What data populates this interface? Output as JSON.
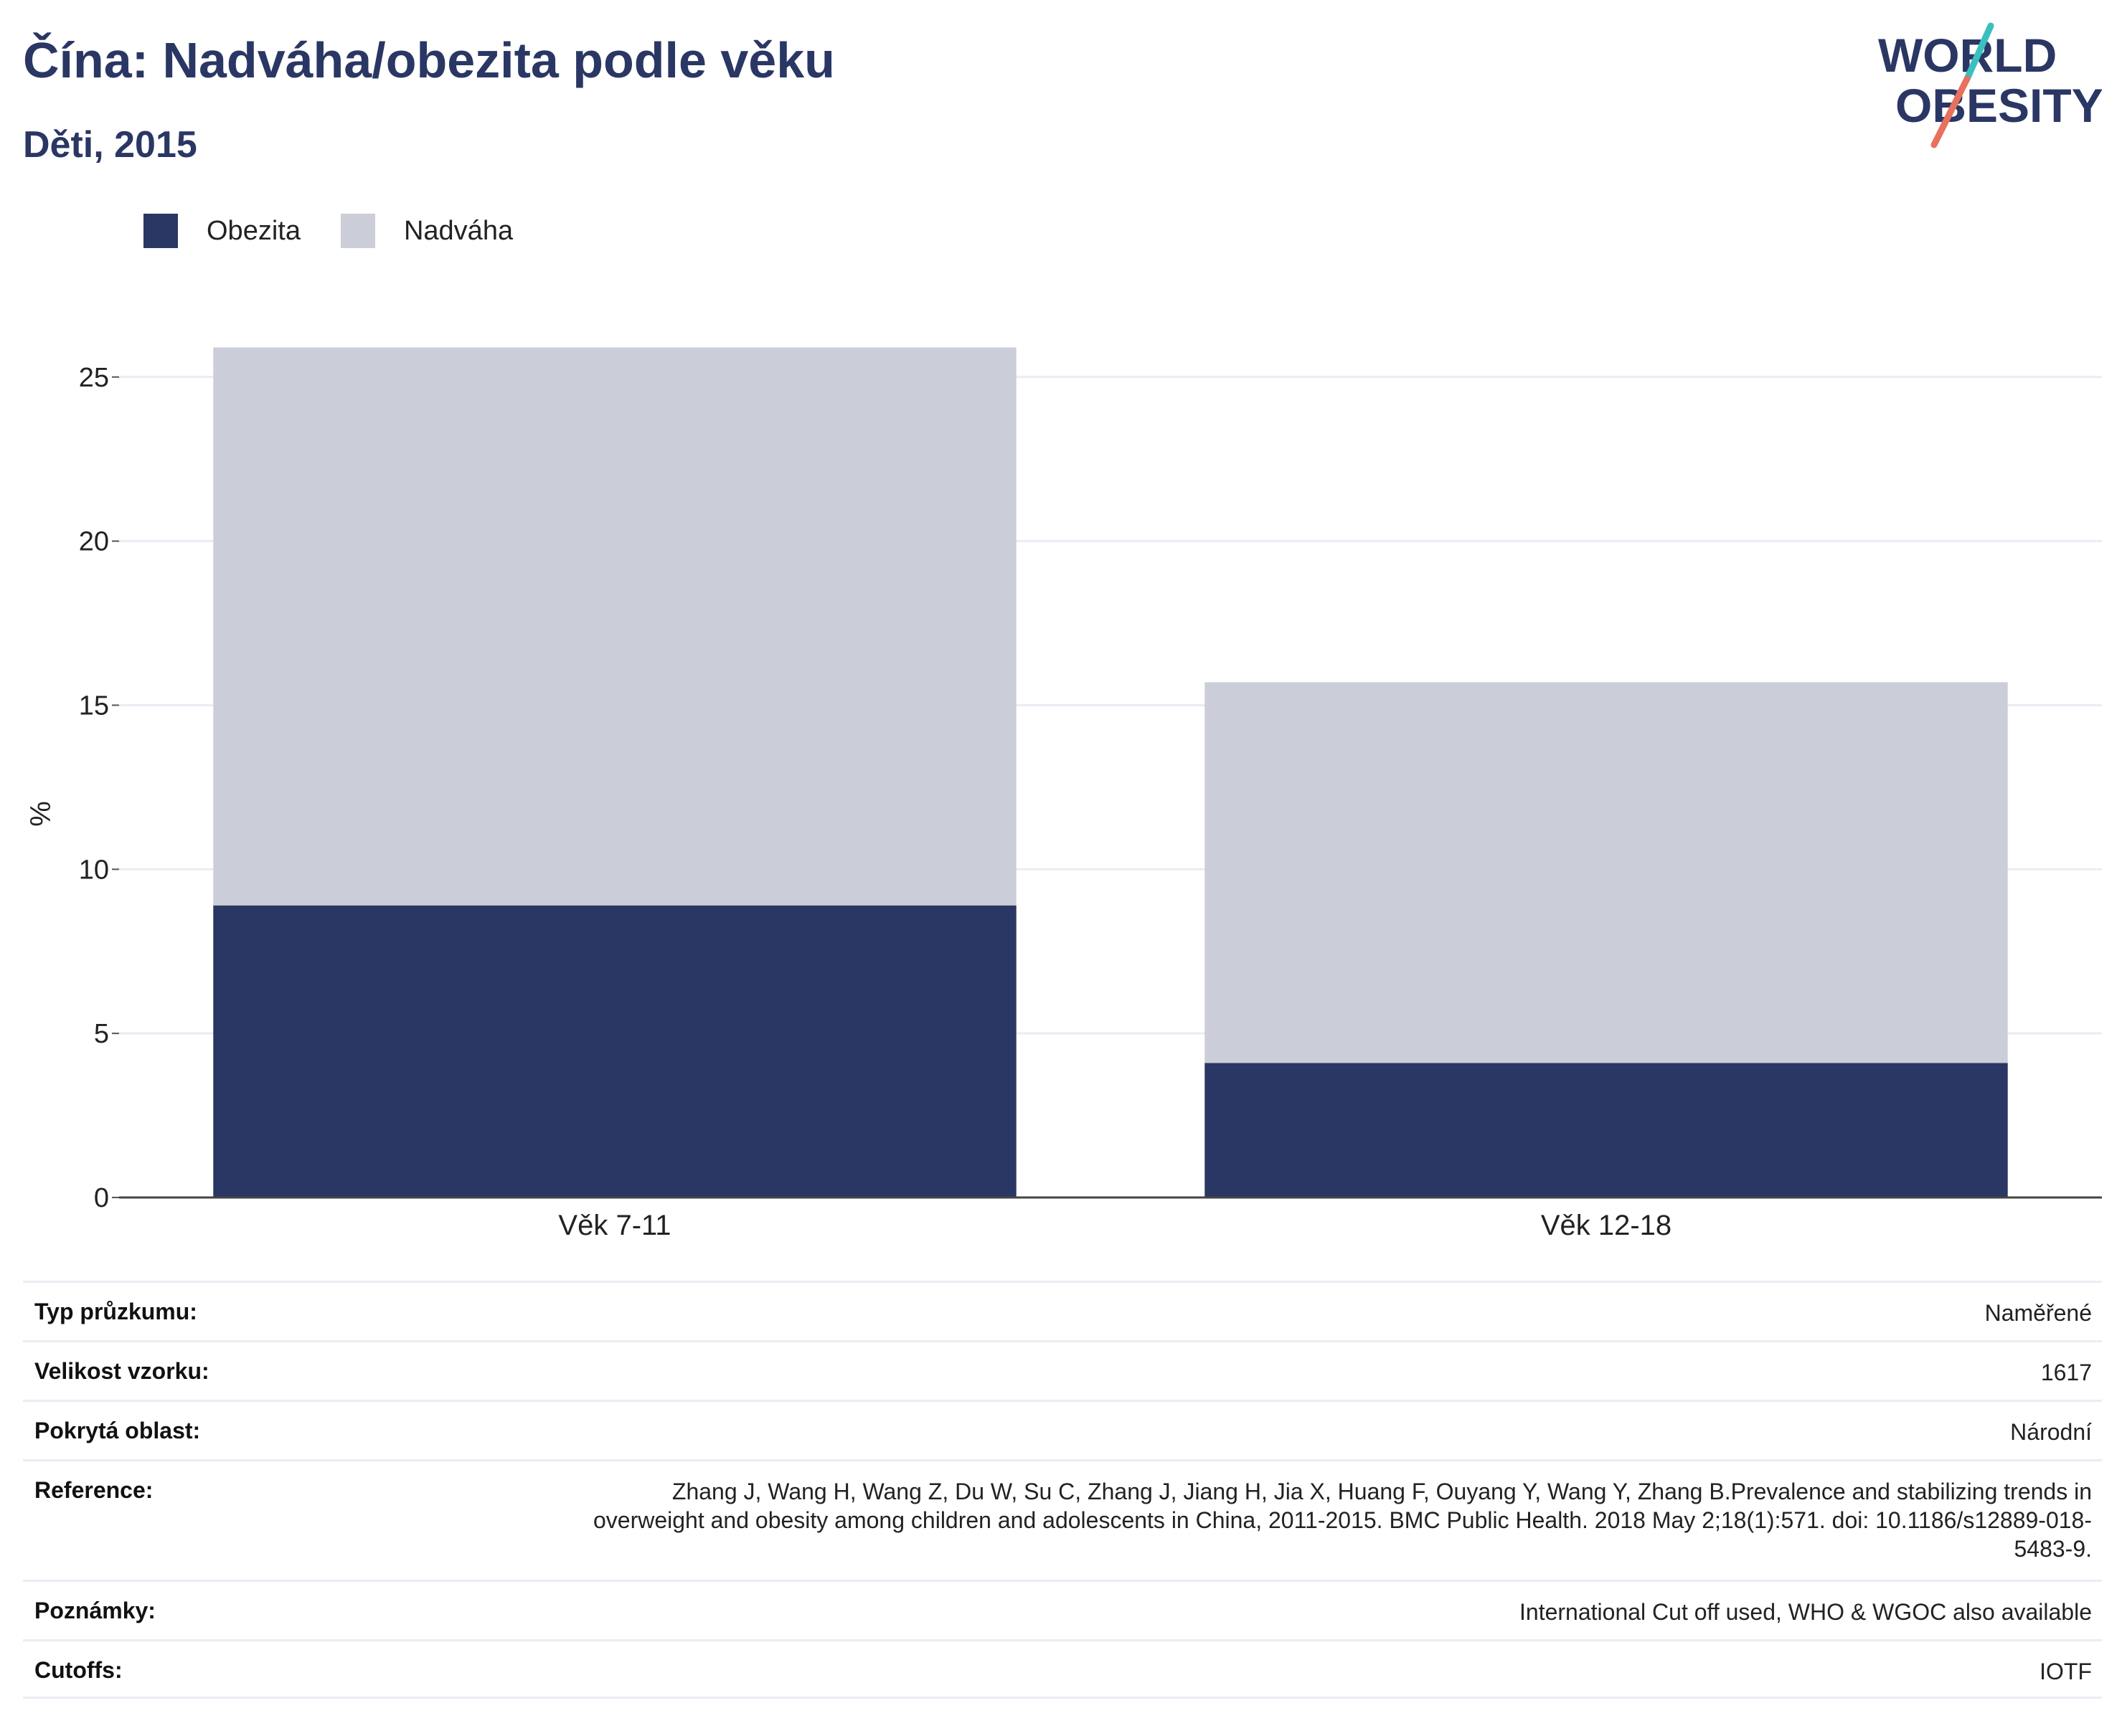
{
  "header": {
    "title": "Čína: Nadváha/obezita podle věku",
    "subtitle": "Děti, 2015"
  },
  "logo": {
    "line1": "WORLD",
    "line2": "OBESITY",
    "text_color": "#2a3764",
    "accent_teal": "#3bbfbf",
    "accent_red": "#e8705f"
  },
  "legend": [
    {
      "label": "Obezita",
      "color": "#2a3764"
    },
    {
      "label": "Nadváha",
      "color": "#cbcdd8"
    }
  ],
  "chart_data": {
    "type": "bar",
    "stacked": true,
    "categories": [
      "Věk 7-11",
      "Věk 12-18"
    ],
    "series": [
      {
        "name": "Obezita",
        "color": "#2a3764",
        "values": [
          8.9,
          4.1
        ]
      },
      {
        "name": "Nadváha",
        "color": "#cbcdd8",
        "values": [
          17.0,
          11.6
        ]
      }
    ],
    "ylabel": "%",
    "ylim": [
      0,
      26
    ],
    "yticks": [
      0,
      5,
      10,
      15,
      20,
      25
    ],
    "grid": true,
    "legend_position": "top-left"
  },
  "info_table": [
    {
      "key": "Typ průzkumu:",
      "value": "Naměřené"
    },
    {
      "key": "Velikost vzorku:",
      "value": "1617"
    },
    {
      "key": "Pokrytá oblast:",
      "value": "Národní"
    },
    {
      "key": "Reference:",
      "value": "Zhang J, Wang H, Wang Z, Du W, Su C, Zhang J, Jiang H, Jia X, Huang F, Ouyang Y, Wang Y, Zhang B.Prevalence and stabilizing trends in overweight and obesity among children and adolescents in China, 2011-2015. BMC Public Health. 2018 May 2;18(1):571. doi: 10.1186/s12889-018-5483-9."
    },
    {
      "key": "Poznámky:",
      "value": "International Cut off used, WHO & WGOC also available"
    },
    {
      "key": "Cutoffs:",
      "value": "IOTF"
    }
  ]
}
